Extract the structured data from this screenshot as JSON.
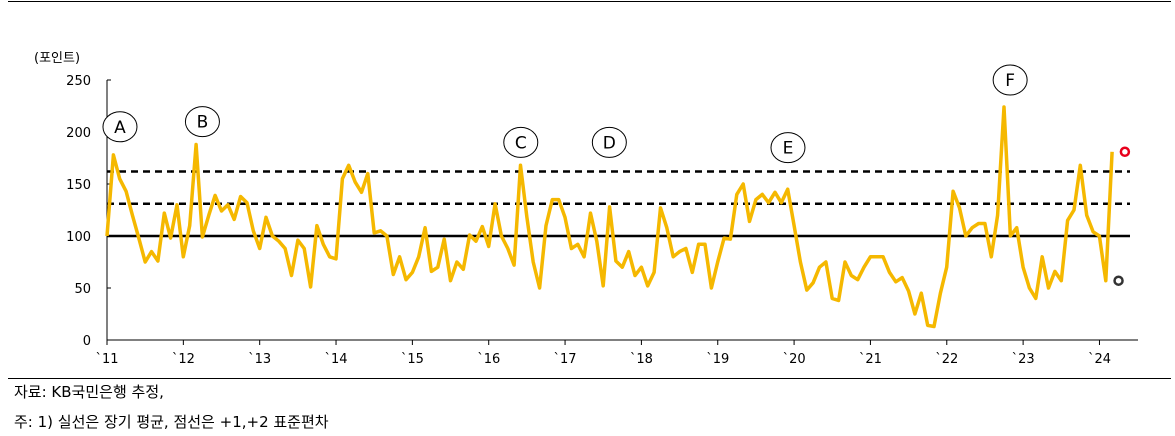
{
  "chart_data": {
    "type": "line",
    "unit_label": "(포인트)",
    "ylim": [
      0,
      250
    ],
    "y_ticks": [
      0,
      50,
      100,
      150,
      200,
      250
    ],
    "x_ticks": [
      "`11",
      "`12",
      "`13",
      "`14",
      "`15",
      "`16",
      "`17",
      "`18",
      "`19",
      "`20",
      "`21",
      "`22",
      "`23",
      "`24"
    ],
    "xlim": [
      2011.0,
      2024.4
    ],
    "grid": false,
    "series": [
      {
        "color": "#F5B800",
        "x_start": 2011.0,
        "step": 0.08333,
        "values": [
          100,
          178,
          155,
          143,
          120,
          98,
          75,
          85,
          76,
          122,
          98,
          130,
          80,
          110,
          188,
          99,
          120,
          139,
          124,
          130,
          116,
          138,
          132,
          105,
          88,
          118,
          100,
          95,
          88,
          62,
          96,
          88,
          51,
          110,
          92,
          80,
          78,
          155,
          168,
          152,
          142,
          160,
          103,
          105,
          100,
          63,
          80,
          58,
          65,
          80,
          108,
          66,
          70,
          97,
          57,
          75,
          68,
          101,
          95,
          109,
          90,
          131,
          100,
          88,
          72,
          168,
          118,
          75,
          50,
          110,
          135,
          135,
          118,
          88,
          92,
          80,
          122,
          95,
          52,
          128,
          76,
          70,
          85,
          62,
          70,
          52,
          65,
          127,
          108,
          80,
          85,
          88,
          65,
          92,
          92,
          50,
          75,
          98,
          97,
          140,
          150,
          114,
          135,
          140,
          132,
          142,
          132,
          145,
          110,
          75,
          48,
          55,
          70,
          75,
          40,
          38,
          75,
          62,
          58,
          70,
          80,
          80,
          80,
          65,
          56,
          60,
          47,
          25,
          45,
          14,
          13,
          45,
          70,
          143,
          127,
          100,
          108,
          112,
          112,
          80,
          120,
          224,
          100,
          108,
          70,
          50,
          40,
          80,
          50,
          66,
          57,
          115,
          125,
          168,
          120,
          104,
          100,
          57,
          181
        ]
      }
    ],
    "reference_lines": [
      {
        "label": "평균",
        "value": 100,
        "style": "solid"
      },
      {
        "label": "+1 표준편차",
        "value": 131,
        "style": "dashed"
      },
      {
        "label": "+2 표준편차",
        "value": 162,
        "style": "dashed"
      }
    ],
    "highlight_points": [
      {
        "x": 2024.25,
        "y": 57,
        "color": "#333333"
      },
      {
        "x": 2024.333,
        "y": 181,
        "color": "#E8001C"
      }
    ],
    "annotations": [
      {
        "text": "A",
        "x": 2011.17,
        "y": 205
      },
      {
        "text": "B",
        "x": 2012.25,
        "y": 210
      },
      {
        "text": "C",
        "x": 2016.42,
        "y": 190
      },
      {
        "text": "D",
        "x": 2017.58,
        "y": 190
      },
      {
        "text": "E",
        "x": 2019.92,
        "y": 185
      },
      {
        "text": "F",
        "x": 2022.83,
        "y": 250
      }
    ]
  },
  "notes": {
    "source": "자료: KB국민은행 추정,",
    "footnote": "주: 1) 실선은 장기 평균, 점선은 +1,+2 표준편차"
  }
}
